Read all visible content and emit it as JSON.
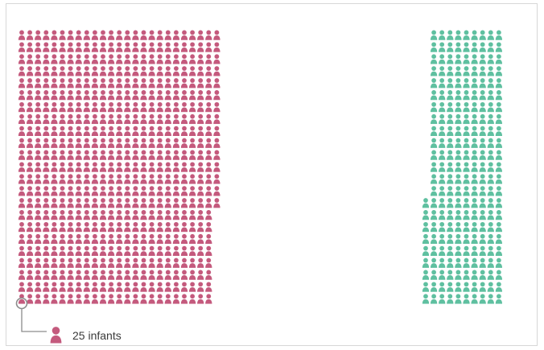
{
  "chart_data": {
    "type": "pictogram",
    "unit_value": 25,
    "unit_label": "infants",
    "series": [
      {
        "count": 567,
        "color": "#c45a7d"
      },
      {
        "count": 216,
        "color": "#5fc0a0"
      }
    ]
  },
  "legend": {
    "label": "25 infants"
  }
}
